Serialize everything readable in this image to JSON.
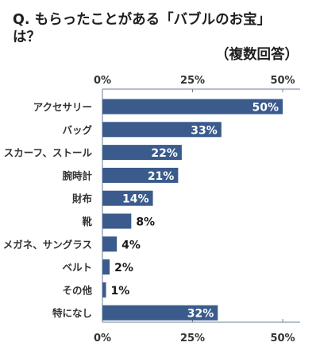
{
  "title": {
    "line1": "Q. もらったことがある「バブルのお宝」は？",
    "line2": "（複数回答）"
  },
  "colors": {
    "bar": "#3a5b8c",
    "axis": "#6b7f99",
    "value_inside": "#ffffff",
    "value_outside": "#1a1a1a",
    "label": "#333333"
  },
  "chart_data": {
    "type": "bar",
    "orientation": "horizontal",
    "categories": [
      "アクセサリー",
      "バッグ",
      "スカーフ、ストール",
      "腕時計",
      "財布",
      "靴",
      "メガネ、サングラス",
      "ベルト",
      "その他",
      "特になし"
    ],
    "values": [
      50,
      33,
      22,
      21,
      14,
      8,
      4,
      2,
      1,
      32
    ],
    "value_labels": [
      "50%",
      "33%",
      "22%",
      "21%",
      "14%",
      "8%",
      "4%",
      "2%",
      "1%",
      "32%"
    ],
    "x_ticks": [
      "0%",
      "25%",
      "50%"
    ],
    "xlim": [
      0,
      50
    ],
    "tick_values": [
      0,
      25,
      50
    ],
    "grid": false
  }
}
